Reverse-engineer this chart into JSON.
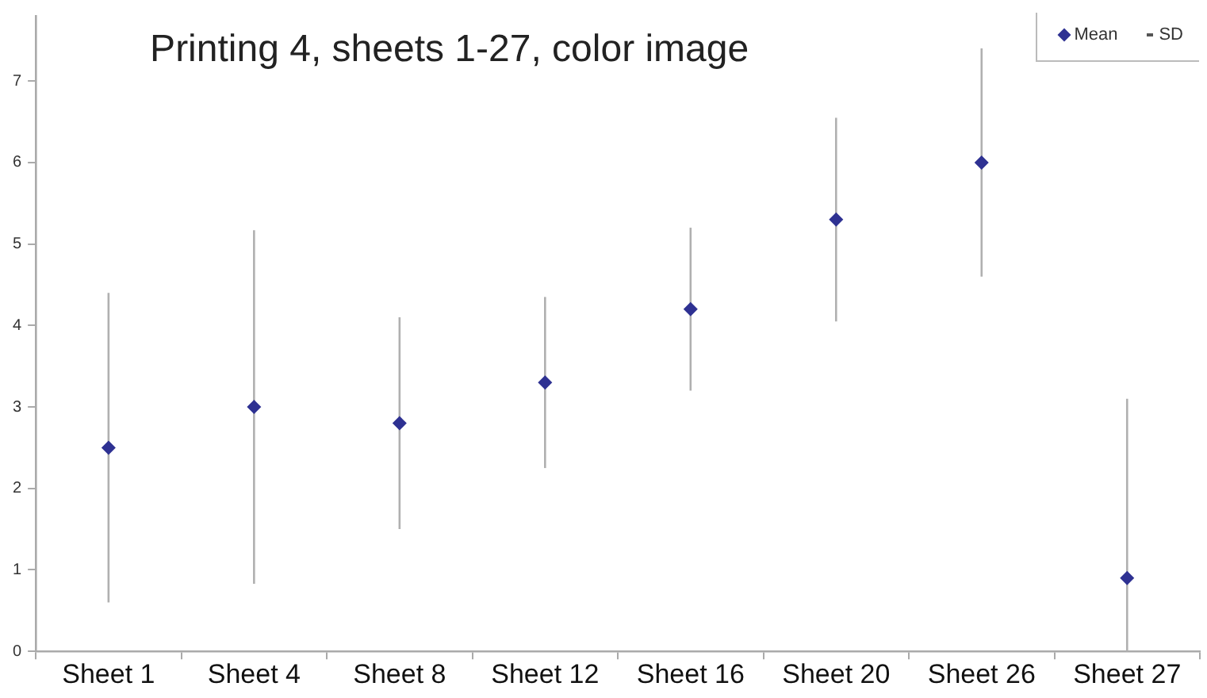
{
  "chart_data": {
    "type": "scatter",
    "title": "Printing 4, sheets 1-27, color image",
    "categories": [
      "Sheet 1",
      "Sheet 4",
      "Sheet 8",
      "Sheet 12",
      "Sheet 16",
      "Sheet 20",
      "Sheet 26",
      "Sheet 27"
    ],
    "series": [
      {
        "name": "Mean",
        "color": "#2e3192",
        "values": [
          2.5,
          3.0,
          2.8,
          3.3,
          4.2,
          5.3,
          6.0,
          0.9
        ],
        "errors": [
          [
            0.6,
            4.4
          ],
          [
            0.83,
            5.17
          ],
          [
            1.5,
            4.1
          ],
          [
            2.25,
            4.35
          ],
          [
            3.2,
            5.2
          ],
          [
            4.05,
            6.55
          ],
          [
            4.6,
            7.4
          ],
          [
            0,
            3.1
          ]
        ]
      }
    ],
    "annotations": [
      "SD"
    ],
    "ylim": [
      0,
      7.8
    ],
    "yticks": [
      0,
      1,
      2,
      3,
      4,
      5,
      6,
      7
    ],
    "grid": false,
    "legend": "top right",
    "marker": "diamond"
  }
}
